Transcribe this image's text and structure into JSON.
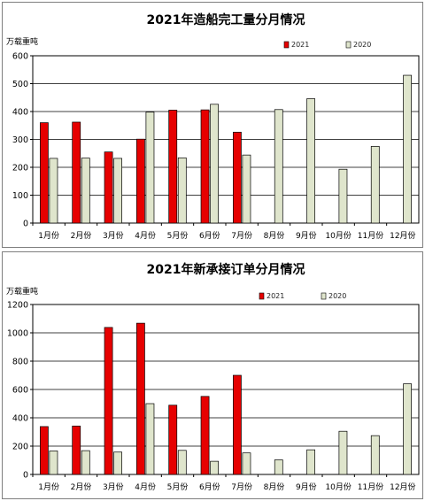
{
  "colors": {
    "s2021": "#e60000",
    "s2020": "#dfe5cc",
    "grid": "#000000",
    "plot_bg": "#ffffff"
  },
  "chart_data": [
    {
      "type": "bar",
      "title": "2021年造船完工量分月情况",
      "ylabel": "万载重吨",
      "ylim": [
        0,
        600
      ],
      "yticks": [
        0,
        100,
        200,
        300,
        400,
        500,
        600
      ],
      "grid": "horizontal",
      "legend_placement": "top-right",
      "categories": [
        "1月份",
        "2月份",
        "3月份",
        "4月份",
        "5月份",
        "6月份",
        "7月份",
        "8月份",
        "9月份",
        "10月份",
        "11月份",
        "12月份"
      ],
      "series": [
        {
          "name": "2021",
          "values": [
            360,
            362,
            255,
            301,
            405,
            406,
            326,
            null,
            null,
            null,
            null,
            null
          ]
        },
        {
          "name": "2020",
          "values": [
            232,
            233,
            232,
            398,
            234,
            426,
            244,
            407,
            446,
            193,
            275,
            530
          ]
        }
      ]
    },
    {
      "type": "bar",
      "title": "2021年新承接订单分月情况",
      "ylabel": "万载重吨",
      "ylim": [
        0,
        1200
      ],
      "yticks": [
        0,
        200,
        400,
        600,
        800,
        1000,
        1200
      ],
      "grid": "horizontal",
      "legend_placement": "top-right",
      "categories": [
        "1月份",
        "2月份",
        "3月份",
        "4月份",
        "5月份",
        "6月份",
        "7月份",
        "8月份",
        "9月份",
        "10月份",
        "11月份",
        "12月份"
      ],
      "series": [
        {
          "name": "2021",
          "values": [
            338,
            342,
            1038,
            1068,
            489,
            551,
            700,
            null,
            null,
            null,
            null,
            null
          ]
        },
        {
          "name": "2020",
          "values": [
            166,
            168,
            158,
            500,
            170,
            93,
            152,
            103,
            174,
            305,
            274,
            640
          ]
        }
      ]
    }
  ]
}
